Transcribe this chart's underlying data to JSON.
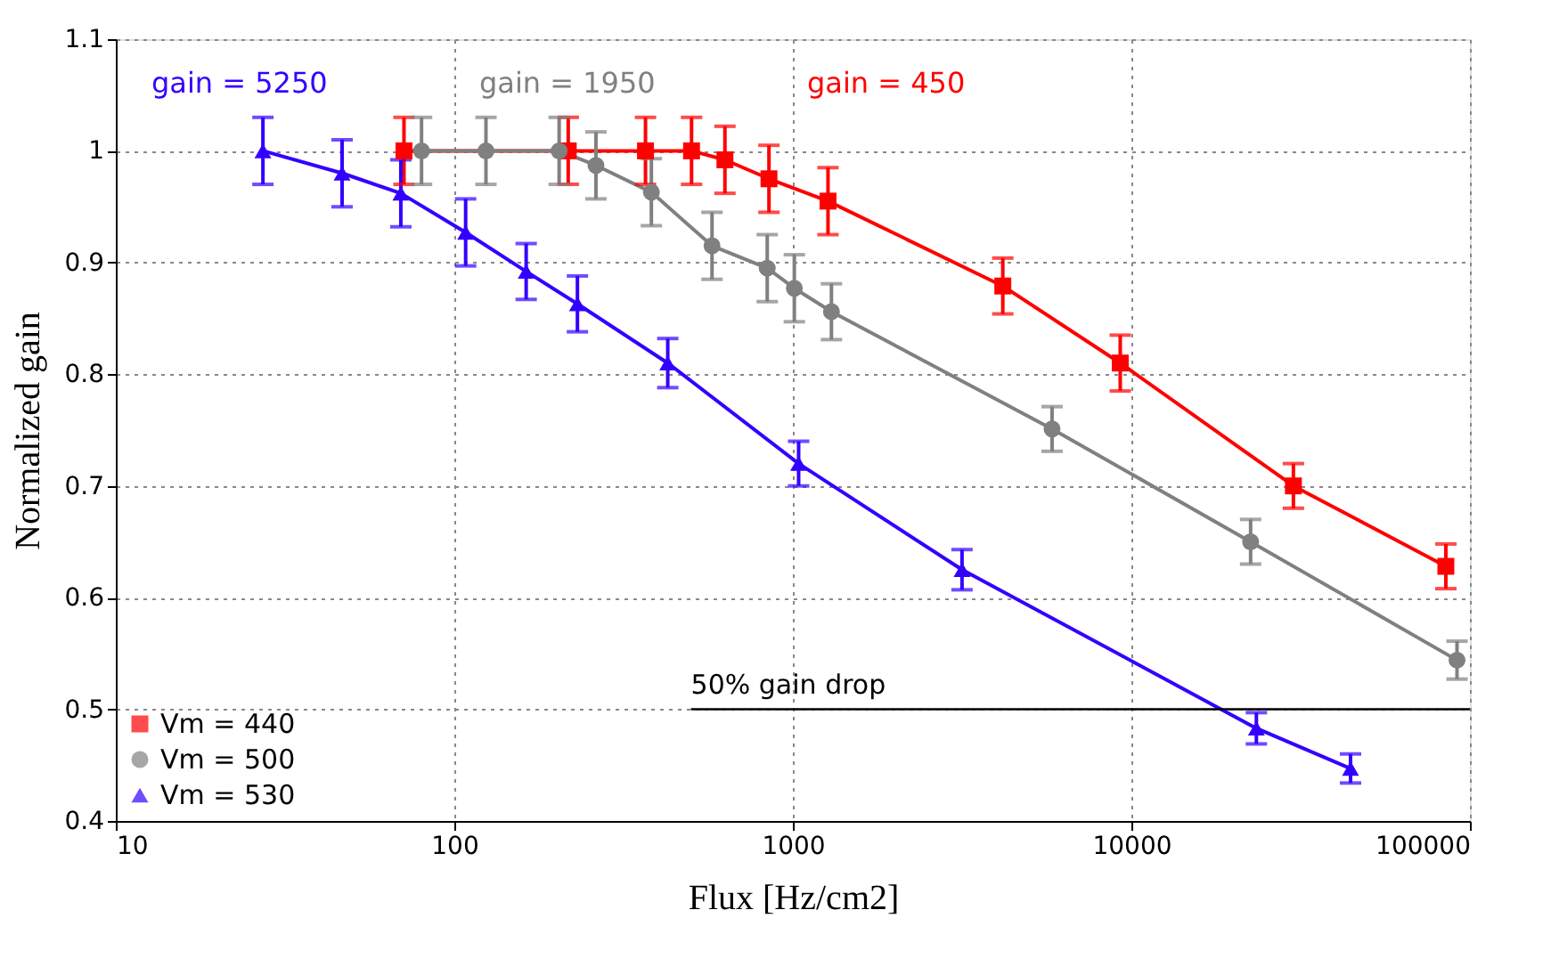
{
  "chart_data": {
    "type": "line",
    "xlabel": "Flux [Hz/cm2]",
    "ylabel": "Normalized gain",
    "log": "x",
    "xlim": [
      10,
      100000
    ],
    "xticks": [
      10,
      100,
      1000,
      10000,
      100000
    ],
    "ylim": [
      0.4,
      1.1
    ],
    "yticks": [
      0.4,
      0.5,
      0.6,
      0.7,
      0.8,
      0.9,
      1,
      1.1
    ],
    "grid": true,
    "legend": "bottom left",
    "series": [
      {
        "name": "Vm = 440",
        "color": "#ff0000",
        "marker": "square",
        "x": [
          71,
          217,
          367,
          502,
          630,
          850,
          1270,
          4170,
          9270,
          30100,
          84900
        ],
        "values": [
          1.0,
          1.0,
          1.0,
          1.0,
          0.992,
          0.975,
          0.955,
          0.879,
          0.81,
          0.7,
          0.628
        ],
        "errors": [
          0.03,
          0.03,
          0.03,
          0.03,
          0.03,
          0.03,
          0.03,
          0.025,
          0.025,
          0.02,
          0.02
        ]
      },
      {
        "name": "Vm = 500",
        "color": "#808080",
        "marker": "circle",
        "x": [
          80,
          124,
          204,
          262,
          382,
          577,
          840,
          1010,
          1300,
          5830,
          22500,
          91600
        ],
        "values": [
          1.0,
          1.0,
          1.0,
          0.987,
          0.963,
          0.915,
          0.895,
          0.877,
          0.856,
          0.751,
          0.65,
          0.544
        ],
        "errors": [
          0.03,
          0.03,
          0.03,
          0.03,
          0.03,
          0.03,
          0.03,
          0.03,
          0.025,
          0.02,
          0.02,
          0.017
        ]
      },
      {
        "name": "Vm = 530",
        "color": "#3300ff",
        "marker": "triangle",
        "x": [
          27.2,
          46.6,
          69.5,
          108,
          163,
          231,
          427,
          1040,
          3160,
          23400,
          44400
        ],
        "values": [
          1.0,
          0.98,
          0.962,
          0.927,
          0.892,
          0.863,
          0.81,
          0.72,
          0.625,
          0.483,
          0.447
        ],
        "errors": [
          0.03,
          0.03,
          0.03,
          0.03,
          0.025,
          0.025,
          0.022,
          0.02,
          0.018,
          0.014,
          0.013
        ]
      }
    ],
    "ref_lines": [
      {
        "axis": "y",
        "value": 0.5,
        "color": "#000000",
        "line_style": "solid"
      }
    ],
    "annotations": [
      "gain = 5250",
      "gain = 1950",
      "gain = 450",
      {
        "text": "50% gain drop",
        "x": 500,
        "y": 0.5
      }
    ]
  }
}
